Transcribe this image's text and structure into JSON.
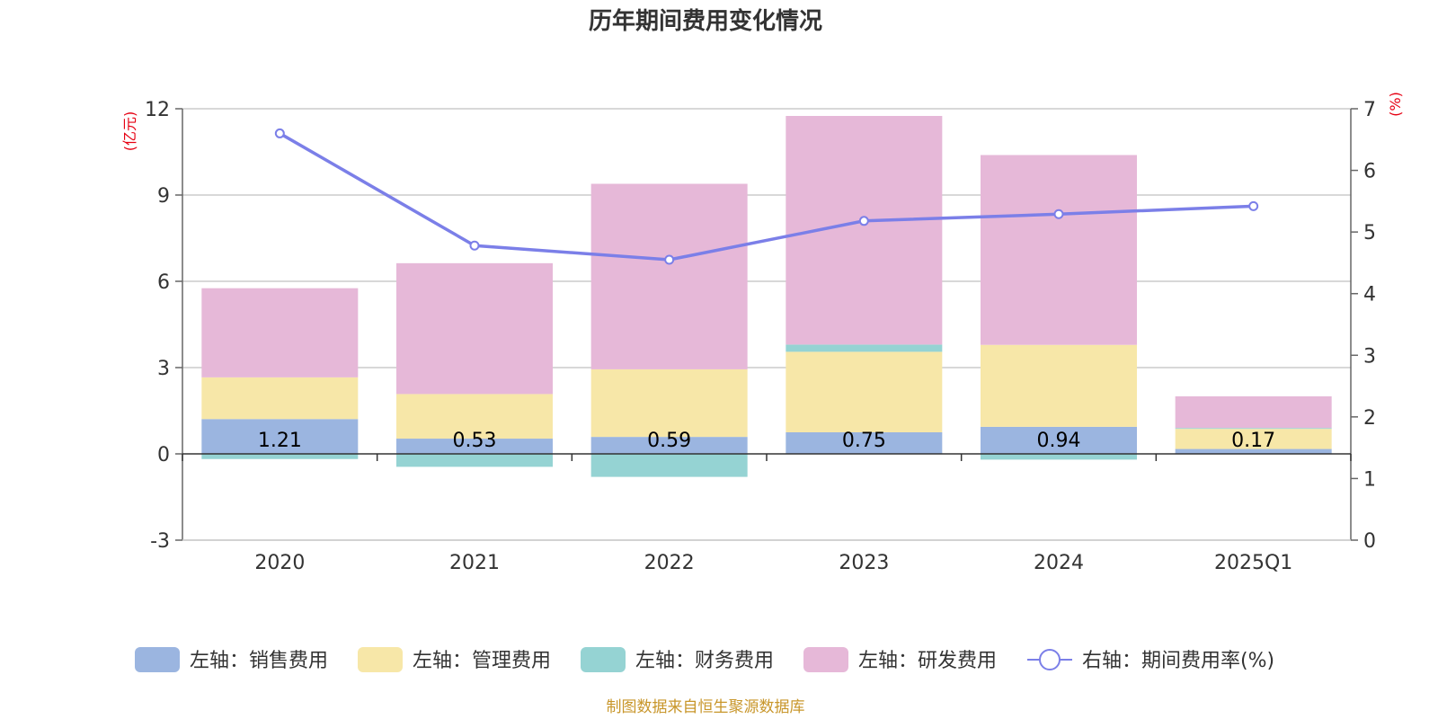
{
  "chart_data": {
    "type": "bar",
    "title": "历年期间费用变化情况",
    "categories": [
      "2020",
      "2021",
      "2022",
      "2023",
      "2024",
      "2025Q1"
    ],
    "left_axis": {
      "unit": "(亿元)",
      "ylim": [
        -3,
        12
      ],
      "ticks": [
        -3,
        0,
        3,
        6,
        9,
        12
      ]
    },
    "right_axis": {
      "unit": "(%)",
      "ylim": [
        0,
        7
      ],
      "ticks": [
        0,
        1,
        2,
        3,
        4,
        5,
        6,
        7
      ]
    },
    "series": [
      {
        "name": "左轴：销售费用",
        "axis": "left",
        "kind": "bar",
        "color": "#9bb5e0",
        "values": [
          1.21,
          0.53,
          0.59,
          0.75,
          0.94,
          0.17
        ],
        "labels": [
          "1.21",
          "0.53",
          "0.59",
          "0.75",
          "0.94",
          "0.17"
        ]
      },
      {
        "name": "左轴：管理费用",
        "axis": "left",
        "kind": "bar",
        "color": "#f7e7a8",
        "values": [
          1.45,
          1.55,
          2.35,
          2.8,
          2.85,
          0.7
        ]
      },
      {
        "name": "左轴：财务费用",
        "axis": "left",
        "kind": "bar",
        "color": "#95d3d3",
        "values": [
          -0.18,
          -0.45,
          -0.8,
          0.25,
          -0.2,
          0.03
        ]
      },
      {
        "name": "左轴：研发费用",
        "axis": "left",
        "kind": "bar",
        "color": "#e6b8d8",
        "values": [
          3.1,
          4.55,
          6.45,
          7.95,
          6.6,
          1.1
        ]
      },
      {
        "name": "右轴：期间费用率(%)",
        "axis": "right",
        "kind": "line",
        "color": "#7b7fe8",
        "values": [
          6.6,
          4.78,
          4.55,
          5.18,
          5.29,
          5.42
        ]
      }
    ],
    "source": "制图数据来自恒生聚源数据库"
  }
}
